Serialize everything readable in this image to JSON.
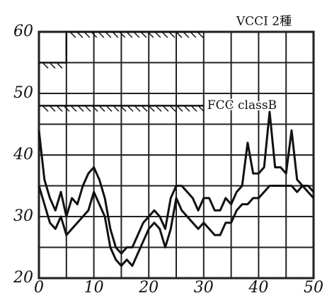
{
  "chart_data": {
    "type": "line",
    "x": [
      0,
      1,
      2,
      3,
      4,
      5,
      6,
      7,
      8,
      9,
      10,
      11,
      12,
      13,
      14,
      15,
      16,
      17,
      18,
      19,
      20,
      21,
      22,
      23,
      24,
      25,
      26,
      27,
      28,
      29,
      30,
      31,
      32,
      33,
      34,
      35,
      36,
      37,
      38,
      39,
      40,
      41,
      42,
      43,
      44,
      45,
      46,
      47,
      48,
      49,
      50
    ],
    "series": [
      {
        "color": "#111111",
        "values": [
          44,
          36,
          33,
          31,
          34,
          30,
          33,
          32,
          35,
          37,
          38,
          36,
          33,
          28,
          25,
          24,
          25,
          25,
          27,
          29,
          30,
          31,
          30,
          28,
          33,
          35,
          35,
          34,
          33,
          31,
          33,
          33,
          31,
          31,
          33,
          32,
          34,
          35,
          42,
          37,
          37,
          38,
          47,
          38,
          38,
          37,
          44,
          36,
          35,
          35,
          34
        ]
      },
      {
        "color": "#111111",
        "values": [
          35,
          32,
          29,
          28,
          30,
          27,
          28,
          29,
          30,
          31,
          34,
          32,
          30,
          25,
          23,
          22,
          23,
          22,
          24,
          26,
          28,
          29,
          28,
          25,
          28,
          33,
          31,
          30,
          29,
          28,
          29,
          28,
          27,
          27,
          29,
          29,
          31,
          32,
          32,
          33,
          33,
          34,
          35,
          35,
          35,
          35,
          35,
          34,
          35,
          34,
          33
        ]
      }
    ],
    "limits": [
      {
        "name": "VCCI 2種",
        "x": [
          0,
          5,
          5,
          30
        ],
        "values": [
          55,
          55,
          60,
          60
        ]
      },
      {
        "name": "FCC classB",
        "x": [
          0,
          30
        ],
        "values": [
          48,
          48
        ]
      }
    ],
    "xlim": [
      0,
      50
    ],
    "xticks": [
      0,
      10,
      20,
      30,
      40,
      50
    ],
    "ylim": [
      20,
      60
    ],
    "yticks": [
      20,
      30,
      40,
      50,
      60
    ],
    "grid": true,
    "minor_grid": true
  }
}
